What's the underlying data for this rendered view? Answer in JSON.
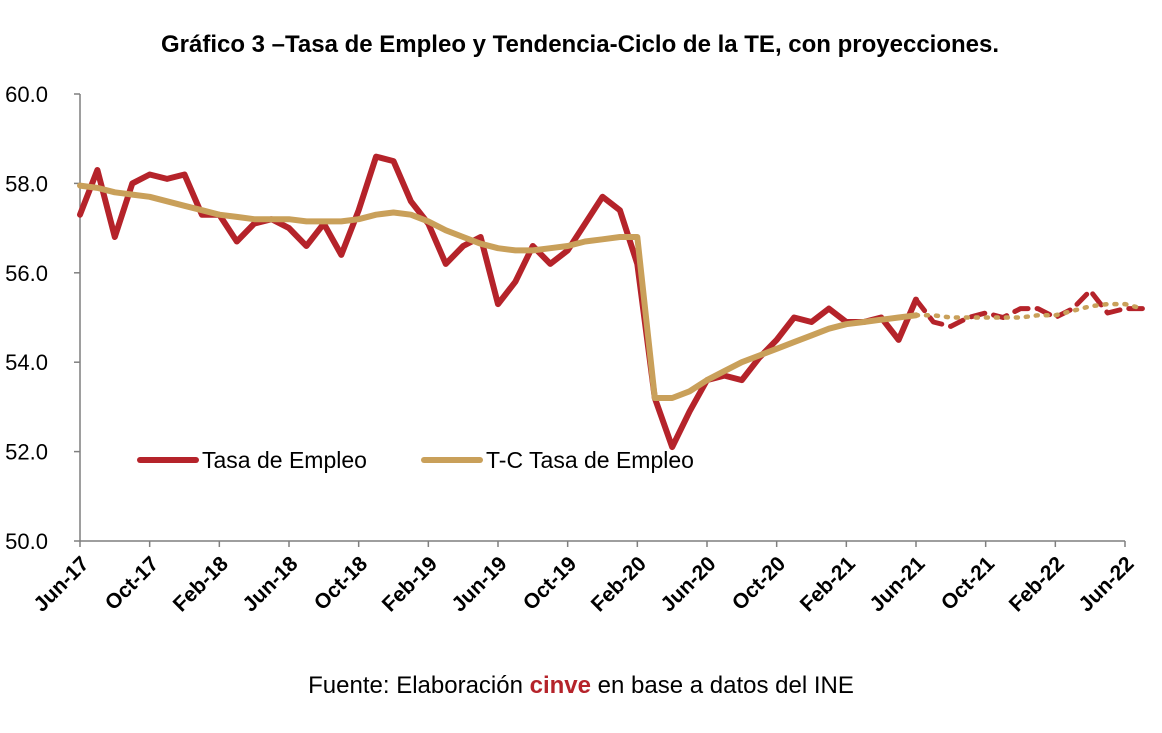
{
  "chart_data": {
    "type": "line",
    "title": "Gráfico 3 –Tasa de Empleo y Tendencia-Ciclo de la TE, con proyecciones.",
    "xlabel": "",
    "ylabel": "",
    "ylim": [
      50,
      60
    ],
    "yticks": [
      "50.0",
      "52.0",
      "54.0",
      "56.0",
      "58.0",
      "60.0"
    ],
    "x_months": [
      "Jun-17",
      "Jul-17",
      "Aug-17",
      "Sep-17",
      "Oct-17",
      "Nov-17",
      "Dec-17",
      "Jan-18",
      "Feb-18",
      "Mar-18",
      "Apr-18",
      "May-18",
      "Jun-18",
      "Jul-18",
      "Aug-18",
      "Sep-18",
      "Oct-18",
      "Nov-18",
      "Dec-18",
      "Jan-19",
      "Feb-19",
      "Mar-19",
      "Apr-19",
      "May-19",
      "Jun-19",
      "Jul-19",
      "Aug-19",
      "Sep-19",
      "Oct-19",
      "Nov-19",
      "Dec-19",
      "Jan-20",
      "Feb-20",
      "Mar-20",
      "Apr-20",
      "May-20",
      "Jun-20",
      "Jul-20",
      "Aug-20",
      "Sep-20",
      "Oct-20",
      "Nov-20",
      "Dec-20",
      "Jan-21",
      "Feb-21",
      "Mar-21",
      "Apr-21",
      "May-21",
      "Jun-21",
      "Jul-21",
      "Aug-21",
      "Sep-21",
      "Oct-21",
      "Nov-21",
      "Dec-21",
      "Jan-22",
      "Feb-22",
      "Mar-22",
      "Apr-22",
      "May-22",
      "Jun-22"
    ],
    "xtick_labels": [
      "Jun-17",
      "Oct-17",
      "Feb-18",
      "Jun-18",
      "Oct-18",
      "Feb-19",
      "Jun-19",
      "Oct-19",
      "Feb-20",
      "Jun-20",
      "Oct-20",
      "Feb-21",
      "Jun-21",
      "Oct-21",
      "Feb-22",
      "Jun-22"
    ],
    "legend_placement": "lower-left",
    "grid": false,
    "series": [
      {
        "name": "Tasa de Empleo",
        "color": "#b5232a",
        "values": [
          57.3,
          58.3,
          56.8,
          58.0,
          58.2,
          58.1,
          58.2,
          57.3,
          57.3,
          56.7,
          57.1,
          57.2,
          57.0,
          56.6,
          57.1,
          56.4,
          57.4,
          58.6,
          58.5,
          57.6,
          57.1,
          56.2,
          56.6,
          56.8,
          55.3,
          55.8,
          56.6,
          56.2,
          56.5,
          57.1,
          57.7,
          57.4,
          56.2,
          53.2,
          52.1,
          52.9,
          53.6,
          53.7,
          53.6,
          54.1,
          54.5,
          55.0,
          54.9,
          55.2,
          54.9,
          54.9,
          55.0,
          54.5,
          55.4
        ],
        "projection_values": [
          55.4,
          54.9,
          54.8,
          55.0,
          55.1,
          55.0,
          55.2,
          55.2,
          55.0,
          55.2,
          55.6,
          55.1,
          55.2,
          55.2
        ]
      },
      {
        "name": "T-C Tasa de Empleo",
        "color": "#c9a05a",
        "values": [
          57.95,
          57.9,
          57.8,
          57.75,
          57.7,
          57.6,
          57.5,
          57.4,
          57.3,
          57.25,
          57.2,
          57.2,
          57.2,
          57.15,
          57.15,
          57.15,
          57.2,
          57.3,
          57.35,
          57.3,
          57.15,
          56.95,
          56.8,
          56.65,
          56.55,
          56.5,
          56.5,
          56.55,
          56.6,
          56.7,
          56.75,
          56.8,
          56.8,
          53.2,
          53.2,
          53.35,
          53.6,
          53.8,
          54.0,
          54.15,
          54.3,
          54.45,
          54.6,
          54.75,
          54.85,
          54.9,
          54.95,
          55.0,
          55.05
        ],
        "projection_values": [
          55.05,
          55.05,
          55.0,
          55.0,
          55.0,
          55.0,
          55.0,
          55.05,
          55.05,
          55.15,
          55.25,
          55.3,
          55.3,
          55.2
        ]
      }
    ],
    "projection_start_index": 48
  },
  "source": {
    "prefix": "Fuente: Elaboración ",
    "brand": "cinve",
    "suffix": " en base a datos del INE",
    "brand_color": "#b5232a"
  }
}
